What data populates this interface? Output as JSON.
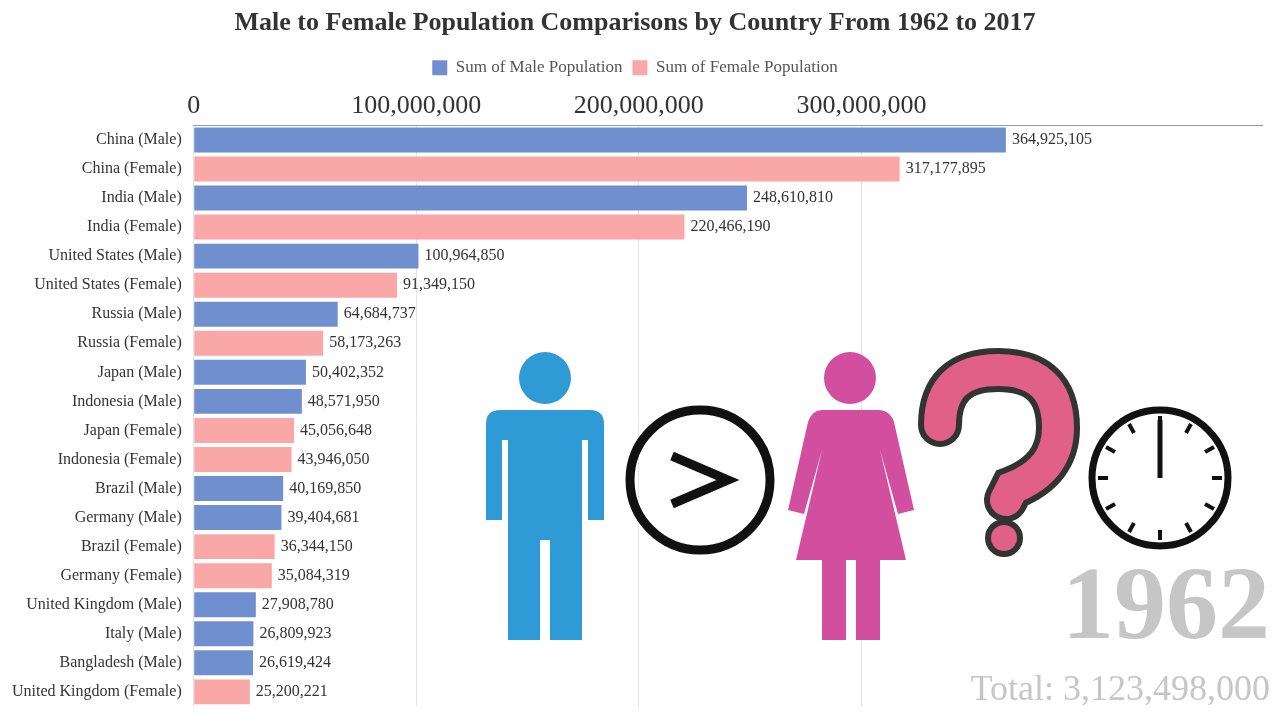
{
  "chart_data": {
    "type": "bar",
    "orientation": "horizontal",
    "title": "Male to Female Population Comparisons by Country From 1962 to 2017",
    "categories": [
      "China (Male)",
      "China (Female)",
      "India (Male)",
      "India (Female)",
      "United States (Male)",
      "United States (Female)",
      "Russia (Male)",
      "Russia (Female)",
      "Japan (Male)",
      "Indonesia (Male)",
      "Japan (Female)",
      "Indonesia (Female)",
      "Brazil (Male)",
      "Germany (Male)",
      "Brazil (Female)",
      "Germany (Female)",
      "United Kingdom (Male)",
      "Italy (Male)",
      "Bangladesh (Male)",
      "United Kingdom (Female)"
    ],
    "series": [
      {
        "name": "Sum of Male Population",
        "color": "#6f8fcf",
        "values": [
          364925105,
          null,
          248610810,
          null,
          100964850,
          null,
          64684737,
          null,
          50402352,
          48571950,
          null,
          null,
          40169850,
          39404681,
          null,
          null,
          27908780,
          26809923,
          26619424,
          null
        ],
        "value_labels": [
          "364,925,105",
          null,
          "248,610,810",
          null,
          "100,964,850",
          null,
          "64,684,737",
          null,
          "50,402,352",
          "48,571,950",
          null,
          null,
          "40,169,850",
          "39,404,681",
          null,
          null,
          "27,908,780",
          "26,809,923",
          "26,619,424",
          null
        ]
      },
      {
        "name": "Sum of Female Population",
        "color": "#f9a7a7",
        "values": [
          null,
          317177895,
          null,
          220466190,
          null,
          91349150,
          null,
          58173263,
          null,
          null,
          45056648,
          43946050,
          null,
          null,
          36344150,
          35084319,
          null,
          null,
          null,
          25200221
        ],
        "value_labels": [
          null,
          "317,177,895",
          null,
          "220,466,190",
          null,
          "91,349,150",
          null,
          "58,173,263",
          null,
          null,
          "45,056,648",
          "43,946,050",
          null,
          null,
          "36,344,150",
          "35,084,319",
          null,
          null,
          null,
          "25,200,221"
        ]
      }
    ],
    "xlim": [
      0,
      480000000
    ],
    "xticks": [
      0,
      {
        "value": 100000000,
        "label": "100,000,000"
      },
      {
        "value": 200000000,
        "label": "200,000,000"
      },
      {
        "value": 300000000,
        "label": "300,000,000"
      }
    ],
    "grid": true,
    "legend": "top",
    "data_labels": true,
    "annotations": [
      "1962",
      "Total: 3,123,498,000"
    ]
  }
}
